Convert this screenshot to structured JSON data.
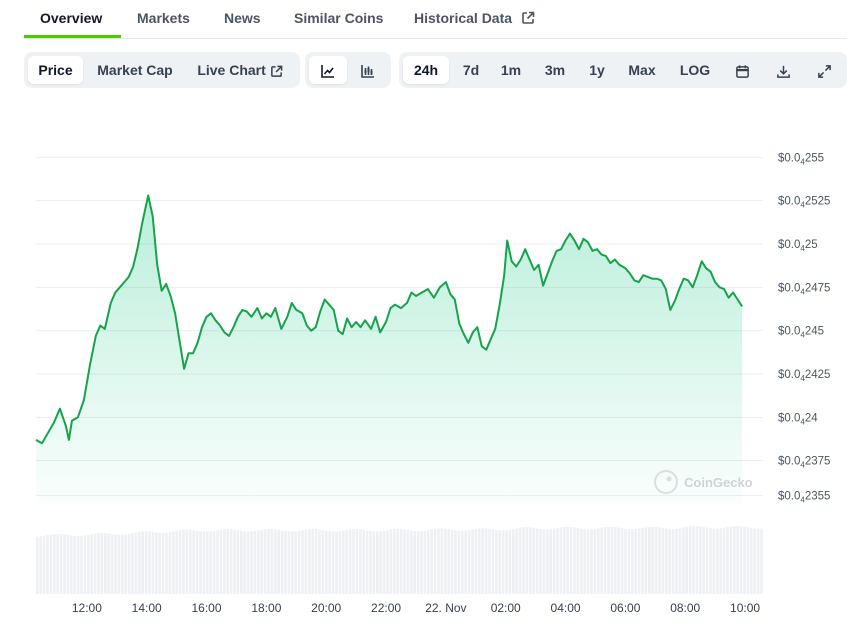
{
  "nav": {
    "tabs": [
      {
        "label": "Overview",
        "active": true
      },
      {
        "label": "Markets"
      },
      {
        "label": "News"
      },
      {
        "label": "Similar Coins"
      },
      {
        "label": "Historical Data",
        "external": true
      }
    ]
  },
  "toolbar": {
    "metric_tabs": [
      "Price",
      "Market Cap",
      "Live Chart"
    ],
    "selected_metric": "Price",
    "chart_type_icons": [
      "line-chart-icon",
      "candlestick-chart-icon"
    ],
    "selected_chart_type": "line-chart-icon",
    "ranges": [
      "24h",
      "7d",
      "1m",
      "3m",
      "1y",
      "Max",
      "LOG"
    ],
    "selected_range": "24h",
    "action_icons": [
      "calendar-icon",
      "download-icon",
      "fullscreen-icon"
    ]
  },
  "watermark": "CoinGecko",
  "colors": {
    "accent": "#4bcc00",
    "line": "#16a34a",
    "area": "#16c784",
    "volume": "#eef0f3"
  },
  "chart_data": {
    "type": "area",
    "y_scale_note": "subscript 4 = four zeros after the decimal point",
    "yticks": [
      {
        "value": 2.355e-05,
        "label": "$0.0",
        "sub": "4",
        "tail": "2355"
      },
      {
        "value": 2.375e-05,
        "label": "$0.0",
        "sub": "4",
        "tail": "2375"
      },
      {
        "value": 2.4e-05,
        "label": "$0.0",
        "sub": "4",
        "tail": "24"
      },
      {
        "value": 2.425e-05,
        "label": "$0.0",
        "sub": "4",
        "tail": "2425"
      },
      {
        "value": 2.45e-05,
        "label": "$0.0",
        "sub": "4",
        "tail": "245"
      },
      {
        "value": 2.475e-05,
        "label": "$0.0",
        "sub": "4",
        "tail": "2475"
      },
      {
        "value": 2.5e-05,
        "label": "$0.0",
        "sub": "4",
        "tail": "25"
      },
      {
        "value": 2.525e-05,
        "label": "$0.0",
        "sub": "4",
        "tail": "2525"
      },
      {
        "value": 2.55e-05,
        "label": "$0.0",
        "sub": "4",
        "tail": "255"
      }
    ],
    "ylim": [
      2.35e-05,
      2.56e-05
    ],
    "xticks": [
      "12:00",
      "14:00",
      "16:00",
      "18:00",
      "20:00",
      "22:00",
      "22. Nov",
      "02:00",
      "04:00",
      "06:00",
      "08:00",
      "10:00"
    ],
    "xtick_hours": [
      12,
      14,
      16,
      18,
      20,
      22,
      24,
      26,
      28,
      30,
      32,
      34
    ],
    "xlim_hours": [
      10.3,
      34.6
    ],
    "series": [
      {
        "points": [
          [
            10.3,
            2.387
          ],
          [
            10.5,
            2.385
          ],
          [
            10.7,
            2.391
          ],
          [
            10.9,
            2.397
          ],
          [
            11.1,
            2.405
          ],
          [
            11.3,
            2.395
          ],
          [
            11.4,
            2.387
          ],
          [
            11.5,
            2.398
          ],
          [
            11.7,
            2.4
          ],
          [
            11.9,
            2.41
          ],
          [
            12.1,
            2.43
          ],
          [
            12.3,
            2.447
          ],
          [
            12.45,
            2.453
          ],
          [
            12.6,
            2.451
          ],
          [
            12.8,
            2.466
          ],
          [
            12.95,
            2.472
          ],
          [
            13.1,
            2.475
          ],
          [
            13.25,
            2.478
          ],
          [
            13.4,
            2.481
          ],
          [
            13.55,
            2.487
          ],
          [
            13.7,
            2.498
          ],
          [
            13.85,
            2.512
          ],
          [
            13.95,
            2.52
          ],
          [
            14.05,
            2.528
          ],
          [
            14.2,
            2.516
          ],
          [
            14.35,
            2.488
          ],
          [
            14.5,
            2.473
          ],
          [
            14.65,
            2.477
          ],
          [
            14.8,
            2.47
          ],
          [
            14.95,
            2.46
          ],
          [
            15.1,
            2.444
          ],
          [
            15.25,
            2.428
          ],
          [
            15.4,
            2.437
          ],
          [
            15.55,
            2.437
          ],
          [
            15.7,
            2.443
          ],
          [
            15.85,
            2.452
          ],
          [
            16.0,
            2.458
          ],
          [
            16.15,
            2.46
          ],
          [
            16.3,
            2.456
          ],
          [
            16.45,
            2.453
          ],
          [
            16.6,
            2.449
          ],
          [
            16.75,
            2.447
          ],
          [
            16.9,
            2.452
          ],
          [
            17.05,
            2.458
          ],
          [
            17.2,
            2.462
          ],
          [
            17.35,
            2.461
          ],
          [
            17.5,
            2.458
          ],
          [
            17.7,
            2.463
          ],
          [
            17.85,
            2.457
          ],
          [
            18.0,
            2.46
          ],
          [
            18.15,
            2.458
          ],
          [
            18.3,
            2.463
          ],
          [
            18.5,
            2.451
          ],
          [
            18.7,
            2.458
          ],
          [
            18.85,
            2.466
          ],
          [
            19.0,
            2.462
          ],
          [
            19.2,
            2.46
          ],
          [
            19.35,
            2.453
          ],
          [
            19.5,
            2.45
          ],
          [
            19.65,
            2.452
          ],
          [
            19.8,
            2.461
          ],
          [
            19.95,
            2.468
          ],
          [
            20.1,
            2.465
          ],
          [
            20.25,
            2.462
          ],
          [
            20.4,
            2.45
          ],
          [
            20.55,
            2.448
          ],
          [
            20.7,
            2.457
          ],
          [
            20.85,
            2.452
          ],
          [
            21.0,
            2.455
          ],
          [
            21.15,
            2.452
          ],
          [
            21.3,
            2.456
          ],
          [
            21.5,
            2.451
          ],
          [
            21.65,
            2.458
          ],
          [
            21.8,
            2.449
          ],
          [
            22.0,
            2.455
          ],
          [
            22.15,
            2.463
          ],
          [
            22.3,
            2.465
          ],
          [
            22.5,
            2.463
          ],
          [
            22.7,
            2.466
          ],
          [
            22.85,
            2.472
          ],
          [
            23.0,
            2.47
          ],
          [
            23.2,
            2.472
          ],
          [
            23.4,
            2.474
          ],
          [
            23.6,
            2.469
          ],
          [
            23.8,
            2.475
          ],
          [
            24.0,
            2.478
          ],
          [
            24.15,
            2.471
          ],
          [
            24.3,
            2.468
          ],
          [
            24.45,
            2.454
          ],
          [
            24.6,
            2.448
          ],
          [
            24.75,
            2.443
          ],
          [
            24.9,
            2.449
          ],
          [
            25.05,
            2.452
          ],
          [
            25.2,
            2.441
          ],
          [
            25.35,
            2.439
          ],
          [
            25.5,
            2.445
          ],
          [
            25.65,
            2.451
          ],
          [
            25.8,
            2.465
          ],
          [
            25.95,
            2.482
          ],
          [
            26.05,
            2.502
          ],
          [
            26.2,
            2.49
          ],
          [
            26.35,
            2.487
          ],
          [
            26.5,
            2.491
          ],
          [
            26.65,
            2.497
          ],
          [
            26.8,
            2.491
          ],
          [
            26.95,
            2.485
          ],
          [
            27.1,
            2.488
          ],
          [
            27.25,
            2.476
          ],
          [
            27.4,
            2.483
          ],
          [
            27.55,
            2.49
          ],
          [
            27.7,
            2.496
          ],
          [
            27.85,
            2.497
          ],
          [
            28.0,
            2.502
          ],
          [
            28.15,
            2.506
          ],
          [
            28.3,
            2.502
          ],
          [
            28.45,
            2.497
          ],
          [
            28.6,
            2.503
          ],
          [
            28.75,
            2.501
          ],
          [
            28.9,
            2.496
          ],
          [
            29.05,
            2.497
          ],
          [
            29.2,
            2.494
          ],
          [
            29.35,
            2.493
          ],
          [
            29.5,
            2.489
          ],
          [
            29.65,
            2.491
          ],
          [
            29.8,
            2.488
          ],
          [
            30.0,
            2.486
          ],
          [
            30.15,
            2.483
          ],
          [
            30.3,
            2.479
          ],
          [
            30.45,
            2.478
          ],
          [
            30.6,
            2.482
          ],
          [
            30.75,
            2.481
          ],
          [
            30.9,
            2.48
          ],
          [
            31.05,
            2.48
          ],
          [
            31.2,
            2.479
          ],
          [
            31.35,
            2.474
          ],
          [
            31.5,
            2.462
          ],
          [
            31.65,
            2.467
          ],
          [
            31.8,
            2.474
          ],
          [
            31.95,
            2.48
          ],
          [
            32.1,
            2.479
          ],
          [
            32.25,
            2.475
          ],
          [
            32.4,
            2.482
          ],
          [
            32.55,
            2.49
          ],
          [
            32.7,
            2.486
          ],
          [
            32.85,
            2.484
          ],
          [
            33.0,
            2.478
          ],
          [
            33.15,
            2.475
          ],
          [
            33.3,
            2.474
          ],
          [
            33.45,
            2.469
          ],
          [
            33.6,
            2.472
          ],
          [
            33.75,
            2.468
          ],
          [
            33.9,
            2.464
          ]
        ]
      }
    ],
    "volume": {
      "hours": [
        10.3,
        12.0,
        13.5,
        15.0,
        16.0,
        18.0,
        20.0,
        22.0,
        24.0,
        25.5,
        27.0,
        29.0,
        31.0,
        32.0,
        34.6
      ],
      "relative": [
        0.8,
        0.81,
        0.83,
        0.86,
        0.87,
        0.87,
        0.87,
        0.87,
        0.88,
        0.88,
        0.9,
        0.9,
        0.9,
        0.91,
        0.91
      ]
    }
  }
}
